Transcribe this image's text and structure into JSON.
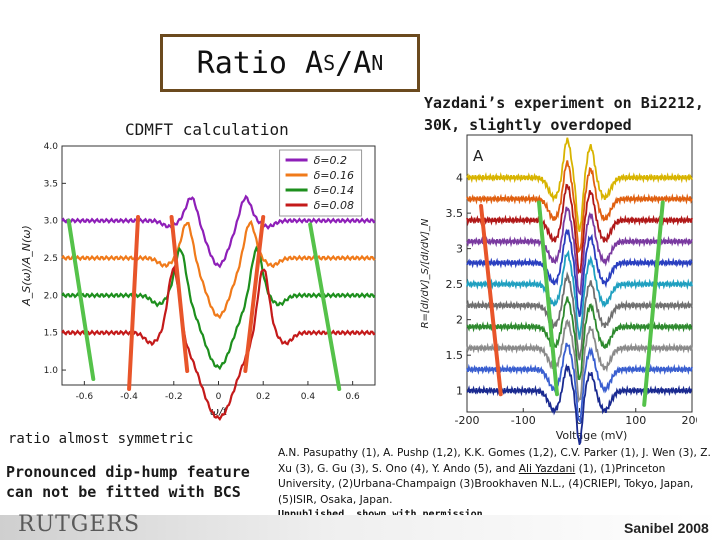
{
  "title": {
    "main": "Ratio A",
    "s_sub": "S",
    "slash": "/A",
    "n_sub": "N"
  },
  "cdmft_label": "CDMFT calculation",
  "yazdani_label": "Yazdani’s experiment on Bi2212, 30K, slightly overdoped",
  "notes": {
    "ratio_symmetric": "ratio almost symmetric",
    "dip_hump": "Pronounced dip-hump feature can not be fitted with BCS"
  },
  "authors": {
    "line": "A.N. Pasupathy (1), A. Pushp (1,2), K.K. Gomes (1,2), C.V. Parker (1), J. Wen (3), Z. Xu (3), G. Gu (3), S. Ono (4), Y. Ando (5), and ",
    "highlight": "Ali Yazdani",
    "tail": " (1),",
    "affiliations": "(1)Princeton University, (2)Urbana-Champaign (3)Brookhaven N.L., (4)CRIEPI, Tokyo, Japan, (5)ISIR, Osaka, Japan."
  },
  "unpublished": "Unpublished, shown with permission",
  "logo": "RUTGERS",
  "footer": "Sanibel 2008",
  "colors": {
    "purple": "#8e1fb8",
    "orange": "#f07a1a",
    "green": "#1d8f1d",
    "red": "#c41a1a",
    "bar_red": "#e8552a",
    "bar_green": "#55c24a"
  },
  "chart_data": [
    {
      "type": "line",
      "title": "CDMFT calculation",
      "xlabel": "ω/t",
      "ylabel": "A_S(ω)/A_N(ω)",
      "xlim": [
        -0.7,
        0.7
      ],
      "ylim": [
        0.8,
        4.0
      ],
      "xticks": [
        "-0.6",
        "-0.4",
        "-0.2",
        "0",
        "0.2",
        "0.4",
        "0.6"
      ],
      "yticks": [
        "1.0",
        "1.5",
        "2.0",
        "2.5",
        "3.0",
        "3.5",
        "4.0"
      ],
      "legend": [
        "δ=0.2",
        "δ=0.16",
        "δ=0.14",
        "δ=0.08"
      ],
      "series": [
        {
          "name": "δ=0.2",
          "color": "purple",
          "offset": 3.0,
          "gap": 0.12,
          "peak": 0.33,
          "hump": 0.08
        },
        {
          "name": "δ=0.16",
          "color": "orange",
          "offset": 2.5,
          "gap": 0.14,
          "peak": 0.5,
          "hump": 0.1
        },
        {
          "name": "δ=0.14",
          "color": "green",
          "offset": 2.0,
          "gap": 0.17,
          "peak": 0.65,
          "hump": 0.12
        },
        {
          "name": "δ=0.08",
          "color": "red",
          "offset": 1.5,
          "gap": 0.2,
          "peak": 0.9,
          "hump": 0.14
        }
      ]
    },
    {
      "type": "line",
      "panel": "A",
      "xlabel": "Voltage (mV)",
      "ylabel": "R=[dI/dV]_S/[dI/dV]_N",
      "xlim": [
        -200,
        200
      ],
      "ylim": [
        0.7,
        4.6
      ],
      "xticks": [
        "-200",
        "-100",
        "0",
        "100",
        "200"
      ],
      "yticks": [
        "1",
        "1.5",
        "2",
        "2.5",
        "3",
        "3.5",
        "4"
      ],
      "series": [
        {
          "color": "#d8b400",
          "offset": 4.0
        },
        {
          "color": "#e06010",
          "offset": 3.7
        },
        {
          "color": "#b01818",
          "offset": 3.4
        },
        {
          "color": "#7a3aa0",
          "offset": 3.1
        },
        {
          "color": "#2a3fc0",
          "offset": 2.8
        },
        {
          "color": "#20a0c0",
          "offset": 2.5
        },
        {
          "color": "#707070",
          "offset": 2.2
        },
        {
          "color": "#2e8a2e",
          "offset": 1.9
        },
        {
          "color": "#8a8a8a",
          "offset": 1.6
        },
        {
          "color": "#3a5fd0",
          "offset": 1.3
        },
        {
          "color": "#1a2a90",
          "offset": 1.0
        }
      ]
    }
  ]
}
